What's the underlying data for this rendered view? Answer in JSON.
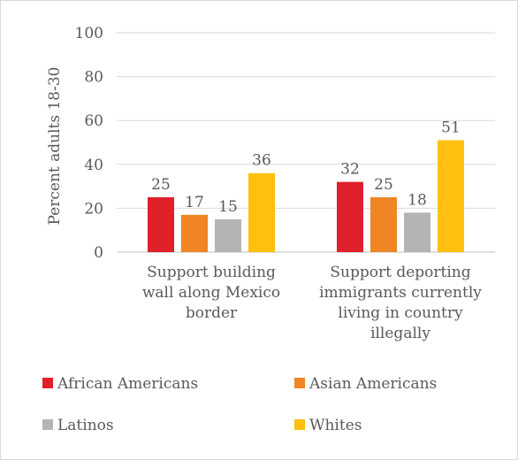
{
  "chart_data": {
    "type": "bar",
    "ylabel": "Percent adults 18-30",
    "ylim": [
      0,
      100
    ],
    "yticks": [
      0,
      20,
      40,
      60,
      80,
      100
    ],
    "grid": true,
    "legend_position": "bottom",
    "categories": [
      [
        "Support building",
        "wall along  Mexico",
        "border"
      ],
      [
        "Support deporting",
        "immigrants currently",
        "living in  country",
        "illegally"
      ]
    ],
    "series": [
      {
        "name": "African Americans",
        "color": "#e0202a",
        "values": [
          25,
          32
        ]
      },
      {
        "name": "Asian Americans",
        "color": "#f08524",
        "values": [
          17,
          25
        ]
      },
      {
        "name": "Latinos",
        "color": "#b4b4b4",
        "values": [
          15,
          18
        ]
      },
      {
        "name": "Whites",
        "color": "#ffc010",
        "values": [
          36,
          51
        ]
      }
    ]
  }
}
